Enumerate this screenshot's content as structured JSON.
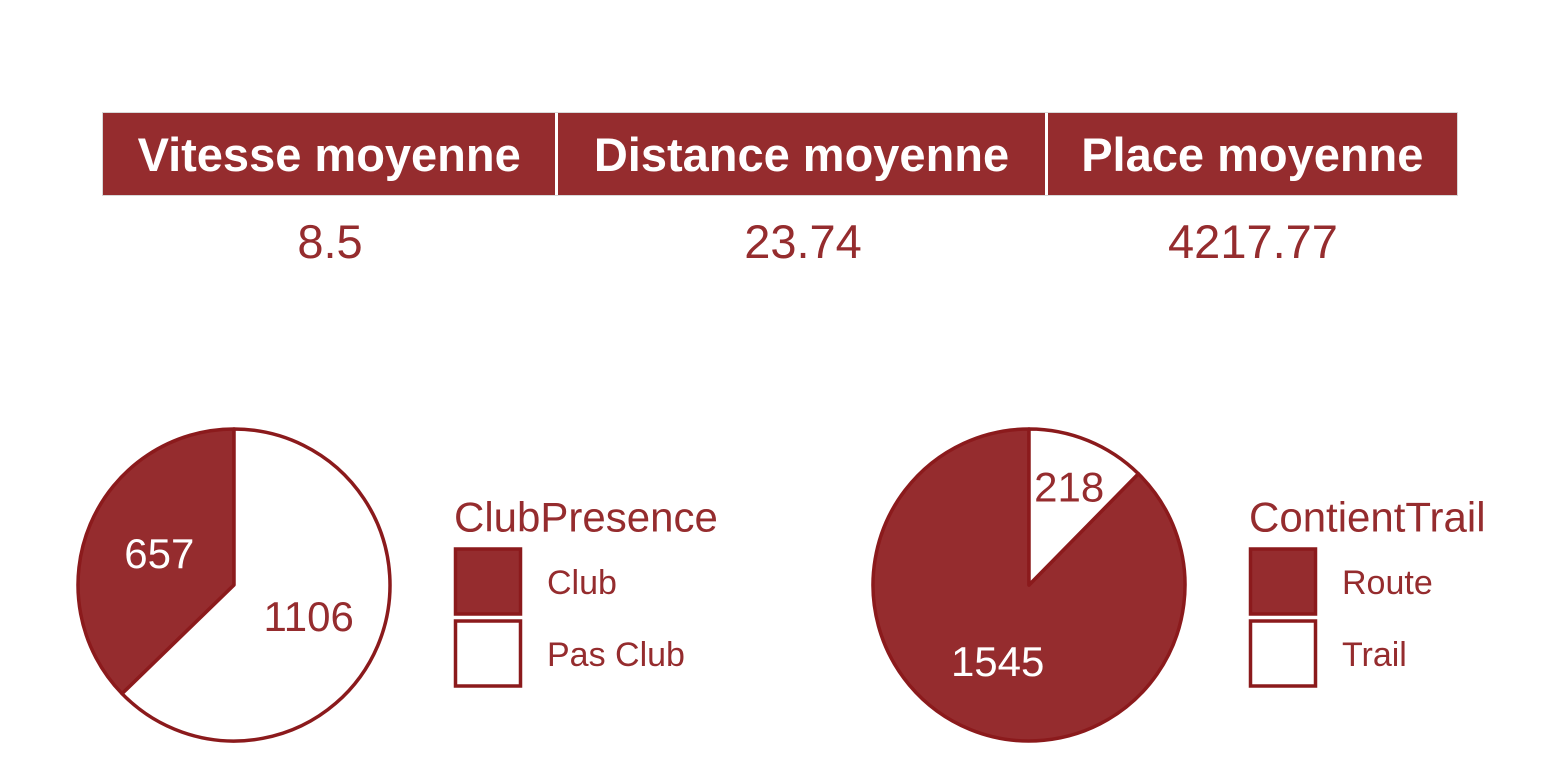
{
  "summary": {
    "headers": [
      "Vitesse moyenne",
      "Distance moyenne",
      "Place moyenne"
    ],
    "values": [
      "8.5",
      "23.74",
      "4217.77"
    ]
  },
  "colors": {
    "accent": "#952c2e",
    "border": "#8b1a1c",
    "background": "#ffffff"
  },
  "chart_data": [
    {
      "type": "pie",
      "legend_title": "ClubPresence",
      "categories": [
        "Club",
        "Pas Club"
      ],
      "values": [
        657,
        1106
      ],
      "colors": [
        "#952c2e",
        "#ffffff"
      ],
      "data_labels": [
        "657",
        "1106"
      ],
      "legend": "right"
    },
    {
      "type": "pie",
      "legend_title": "ContientTrail",
      "categories": [
        "Route",
        "Trail"
      ],
      "values": [
        1545,
        218
      ],
      "colors": [
        "#952c2e",
        "#ffffff"
      ],
      "data_labels": [
        "1545",
        "218"
      ],
      "legend": "right"
    }
  ]
}
